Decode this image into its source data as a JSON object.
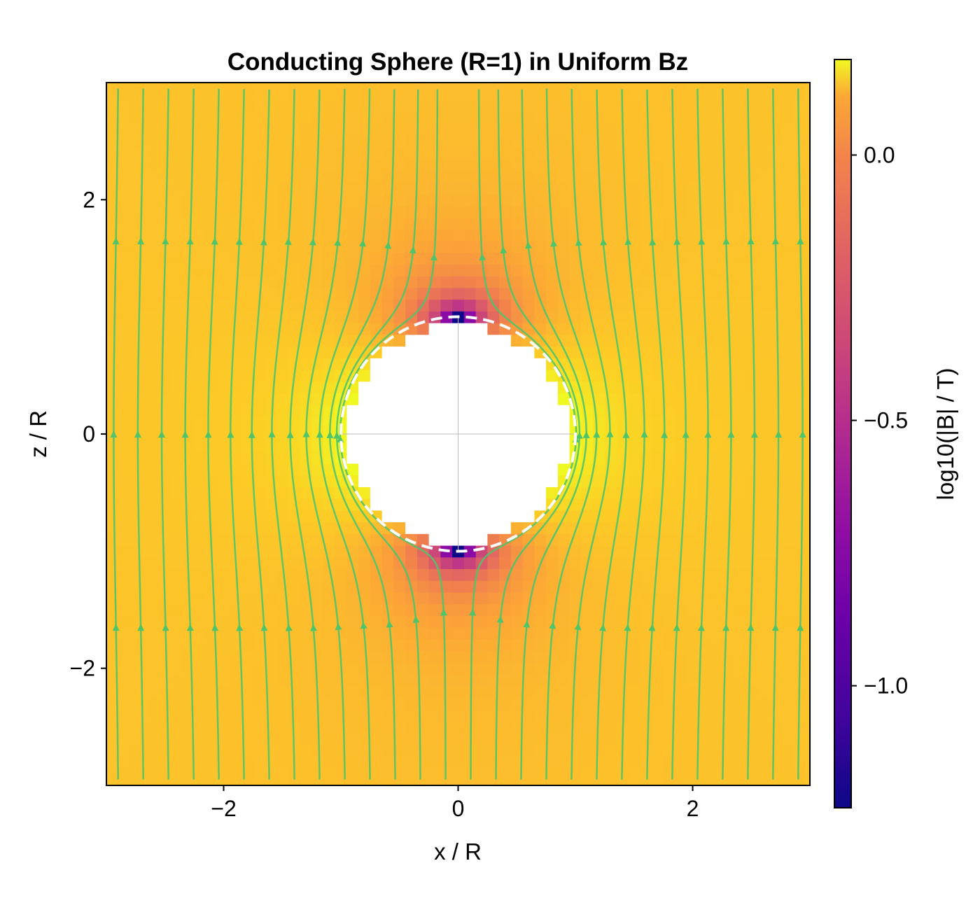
{
  "chart_data": {
    "type": "heatmap",
    "title": "Conducting Sphere (R=1) in Uniform Bz",
    "xlabel": "x / R",
    "ylabel": "z / R",
    "xlim": [
      -3,
      3
    ],
    "ylim": [
      -3,
      3
    ],
    "x_ticks": [
      -2,
      0,
      2
    ],
    "y_ticks": [
      -2,
      0,
      2
    ],
    "x_tick_labels": [
      "−2",
      "0",
      "2"
    ],
    "y_tick_labels": [
      "−2",
      "0",
      "2"
    ],
    "grid": false,
    "sphere_radius": 1,
    "sphere_boundary": "white dashed circle",
    "field": {
      "description": "B = B0 z-hat plus dipole response, excluded from sphere interior (r < R)",
      "B0": 1,
      "dipole_moment_factor": -0.5,
      "grid_points": 61
    },
    "streamlines": {
      "color": "#4fc46a",
      "count": 28
    },
    "colorbar": {
      "label": "log10(|B| / T)",
      "colormap": "plasma",
      "range": [
        -1.23,
        0.18
      ],
      "ticks": [
        0.0,
        -0.5,
        -1.0
      ],
      "tick_labels": [
        "0.0",
        "−0.5",
        "−1.0"
      ]
    }
  }
}
